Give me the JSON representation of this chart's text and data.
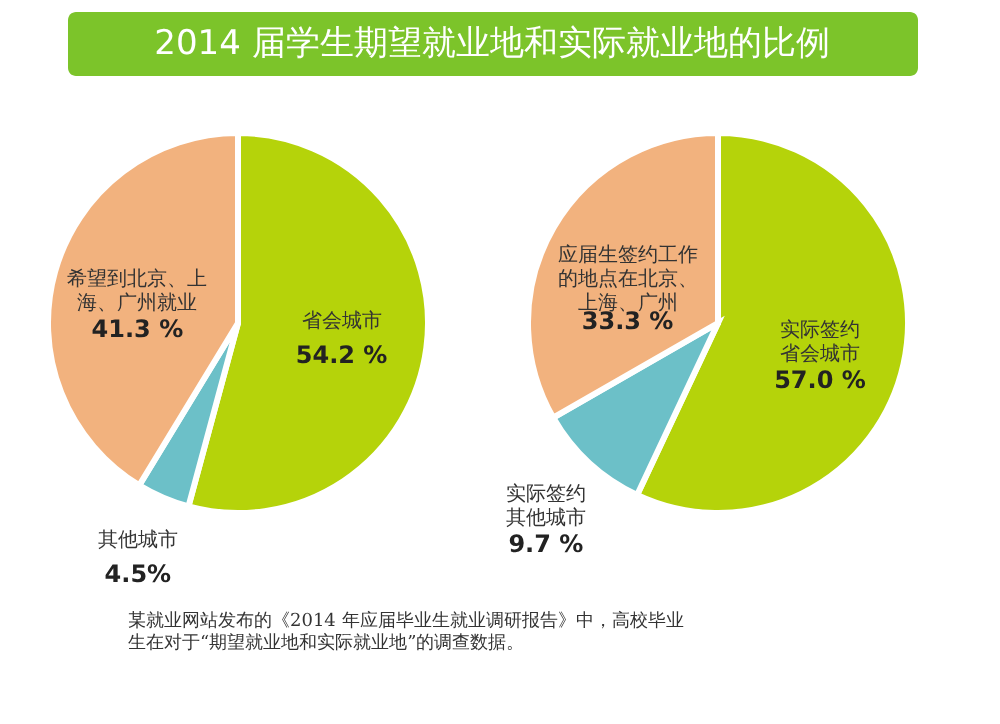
{
  "chart_data": [
    {
      "type": "pie",
      "title": "2014 届学生期望就业地和实际就业地的比例",
      "categories": [
        "省会城市",
        "其他城市",
        "希望到北京、上海、广州就业"
      ],
      "values": [
        54.2,
        4.5,
        41.3
      ],
      "value_labels": [
        "54.2 %",
        "4.5%",
        "41.3 %"
      ],
      "colors": [
        "#b5d30a",
        "#6cc0c8",
        "#f2b27e"
      ]
    },
    {
      "type": "pie",
      "categories": [
        "实际签约省会城市",
        "实际签约其他城市",
        "应届生签约工作的地点在北京、上海、广州"
      ],
      "values": [
        57.0,
        9.7,
        33.3
      ],
      "value_labels": [
        "57.0 %",
        "9.7 %",
        "33.3 %"
      ],
      "colors": [
        "#b5d30a",
        "#6cc0c8",
        "#f2b27e"
      ],
      "annotations": [
        "某就业网站发布的《2014 年应届毕业生就业调研报告》中，高校毕业生在对于“期望就业地和实际就业地”的调查数据。"
      ]
    }
  ]
}
